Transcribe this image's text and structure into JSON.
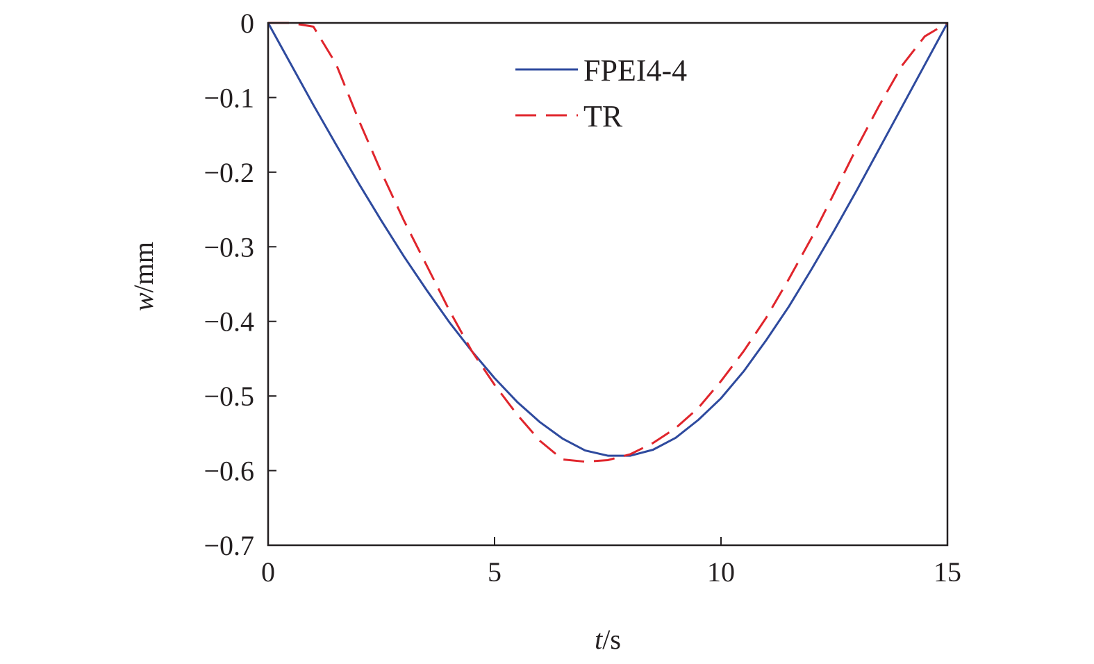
{
  "chart_data": {
    "type": "line",
    "x": [
      0,
      0.5,
      1,
      1.5,
      2,
      2.5,
      3,
      3.5,
      4,
      4.5,
      5,
      5.5,
      6,
      6.5,
      7,
      7.5,
      8,
      8.5,
      9,
      9.5,
      10,
      10.5,
      11,
      11.5,
      12,
      12.5,
      13,
      13.5,
      14,
      14.5,
      15
    ],
    "series": [
      {
        "name": "FPEI4-4",
        "color": "#2e4a9e",
        "dash": "solid",
        "values": [
          0,
          -0.055,
          -0.11,
          -0.163,
          -0.215,
          -0.265,
          -0.313,
          -0.358,
          -0.401,
          -0.44,
          -0.476,
          -0.508,
          -0.535,
          -0.557,
          -0.573,
          -0.58,
          -0.58,
          -0.572,
          -0.556,
          -0.532,
          -0.503,
          -0.467,
          -0.425,
          -0.38,
          -0.33,
          -0.278,
          -0.224,
          -0.168,
          -0.112,
          -0.056,
          0
        ]
      },
      {
        "name": "TR",
        "color": "#e0252c",
        "dash": "dashed",
        "values": [
          0,
          0,
          -0.005,
          -0.055,
          -0.13,
          -0.2,
          -0.265,
          -0.325,
          -0.385,
          -0.44,
          -0.485,
          -0.525,
          -0.56,
          -0.585,
          -0.588,
          -0.586,
          -0.578,
          -0.563,
          -0.543,
          -0.516,
          -0.48,
          -0.44,
          -0.395,
          -0.343,
          -0.288,
          -0.228,
          -0.167,
          -0.11,
          -0.057,
          -0.018,
          0
        ]
      }
    ],
    "xlim": [
      0,
      15
    ],
    "ylim": [
      -0.7,
      0
    ],
    "xticks": [
      "0",
      "5",
      "10",
      "15"
    ],
    "yticks": [
      "0",
      "−0.1",
      "−0.2",
      "−0.3",
      "−0.4",
      "−0.5",
      "−0.6",
      "−0.7"
    ],
    "xlabel_var": "t",
    "xlabel_unit": "/s",
    "ylabel_var": "w",
    "ylabel_unit": "/mm",
    "grid": false,
    "legend_position": "top-center"
  }
}
